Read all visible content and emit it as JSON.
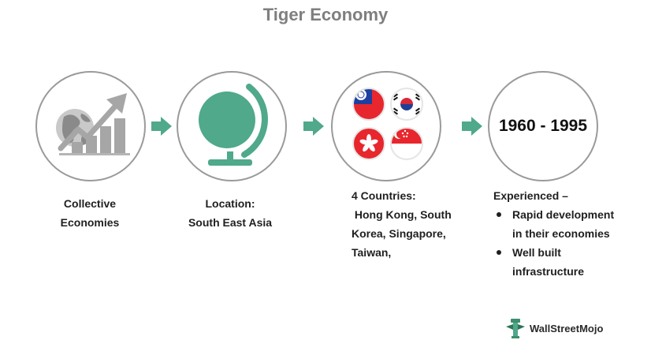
{
  "title": "Tiger Economy",
  "steps": [
    {
      "icon": "growth-chart-globe-icon",
      "caption_lines": [
        "Collective",
        "Economies"
      ]
    },
    {
      "icon": "globe-icon",
      "caption_lines": [
        "Location:",
        "South East Asia"
      ]
    },
    {
      "icon": "country-flags-icon",
      "flags": [
        "taiwan-flag",
        "south-korea-flag",
        "hong-kong-flag",
        "singapore-flag"
      ],
      "caption_lines": [
        "4 Countries:",
        " Hong Kong, South",
        "Korea, Singapore,",
        "Taiwan,"
      ]
    },
    {
      "years": "1960 - 1995",
      "caption_heading": "Experienced –",
      "bullets": [
        [
          "Rapid development",
          "in their economies"
        ],
        [
          "Well built",
          "infrastructure"
        ]
      ]
    }
  ],
  "brand": {
    "name": "WallStreetMojo",
    "icon": "wallstreetmojo-logo-icon"
  },
  "colors": {
    "accent": "#4fa98a",
    "circle_border": "#9a9a9a",
    "title": "#7f7f7f",
    "chart_gray": "#a6a6a6"
  }
}
